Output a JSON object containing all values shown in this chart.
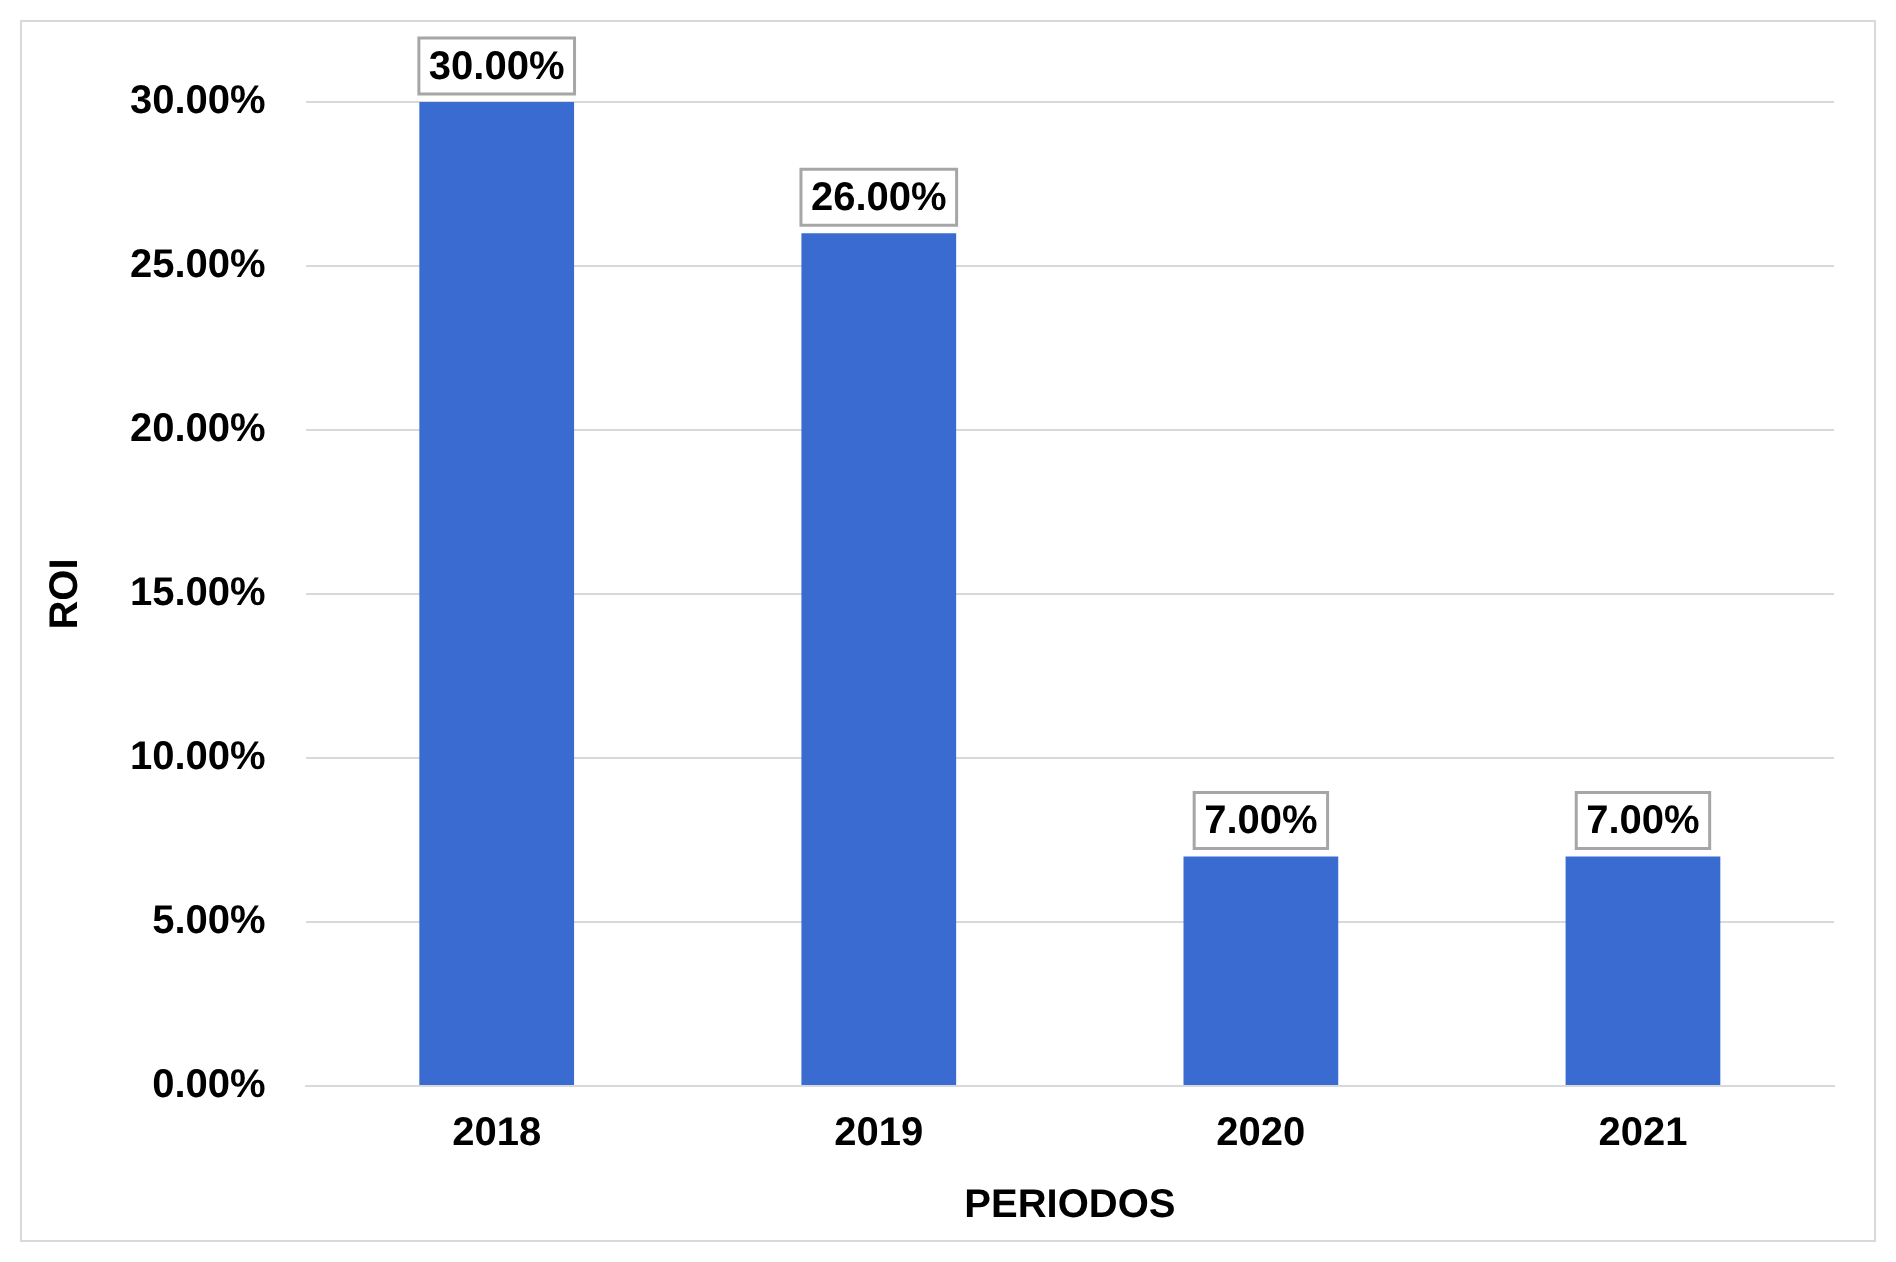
{
  "chart_data": {
    "type": "bar",
    "xlabel": "PERIODOS",
    "ylabel": "ROI",
    "categories": [
      "2018",
      "2019",
      "2020",
      "2021"
    ],
    "values": [
      30,
      26,
      7,
      7
    ],
    "value_labels": [
      "30.00%",
      "26.00%",
      "7.00%",
      "7.00%"
    ],
    "color": "#3a6bd0",
    "ylim": [
      0,
      30
    ],
    "yticks": [
      {
        "value": 0,
        "label": "0.00%"
      },
      {
        "value": 5,
        "label": "5.00%"
      },
      {
        "value": 10,
        "label": "10.00%"
      },
      {
        "value": 15,
        "label": "15.00%"
      },
      {
        "value": 20,
        "label": "20.00%"
      },
      {
        "value": 25,
        "label": "25.00%"
      },
      {
        "value": 30,
        "label": "30.00%"
      }
    ],
    "grid": "y",
    "legend": false
  }
}
